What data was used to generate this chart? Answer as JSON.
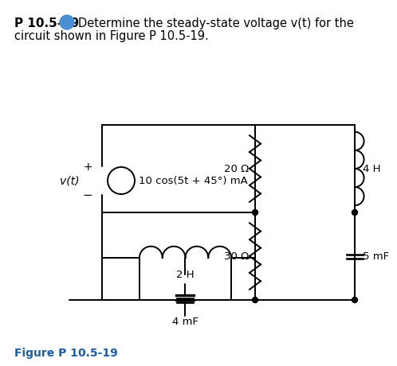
{
  "title_text": "P 10.5-19",
  "title_desc_1": "Determine the steady-state voltage v(t) for the",
  "title_desc_2": "circuit shown in Figure P 10.5-19.",
  "fig_label": "Figure P 10.5-19",
  "source_label": "10 cos(5t + 45°) mA",
  "v_label": "v(t)",
  "plus_label": "+",
  "minus_label": "−",
  "R1_label": "20 Ω",
  "L1_label": "4 H",
  "R2_label": "30 Ω",
  "C1_label": "5 mF",
  "L2_label": "2 H",
  "C2_label": "4 mF",
  "title_color": "#000000",
  "plus_circle_color": "#4a8fd4",
  "fig_label_color": "#1a5fa8",
  "line_color": "#000000",
  "bg_color": "#ffffff"
}
